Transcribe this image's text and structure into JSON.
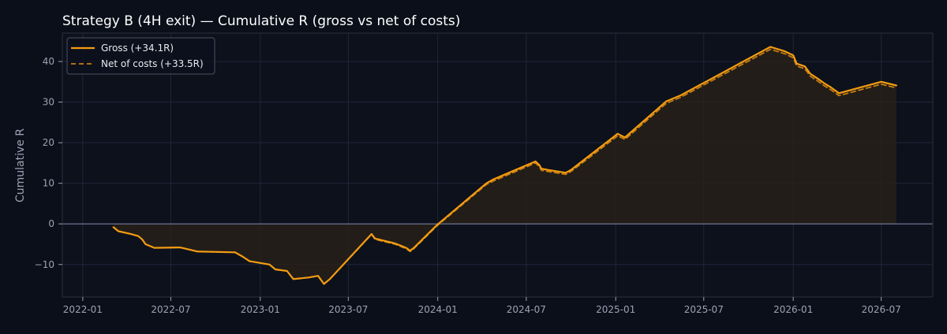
{
  "colors": {
    "background": "#0b0f19",
    "plot_background": "#0d111c",
    "grid": "#20263a",
    "axis_spine": "#2a3040",
    "tick_text": "#9aa3b5",
    "title_text": "#ffffff",
    "gross_line": "#f39c12",
    "net_line": "#c87d0e",
    "fill": "#2a2218",
    "zero_line": "#6b7590"
  },
  "chart_data": {
    "type": "line",
    "title": "Strategy B (4H exit) — Cumulative R (gross vs net of costs)",
    "xlabel": "",
    "ylabel": "Cumulative R",
    "x_axis_type": "date",
    "xlim": [
      "2021-11-20",
      "2026-10-15"
    ],
    "ylim": [
      -18,
      47
    ],
    "x_ticks": [
      "2022-01-01",
      "2022-07-01",
      "2023-01-01",
      "2023-07-01",
      "2024-01-01",
      "2024-07-01",
      "2025-01-01",
      "2025-07-01",
      "2026-01-01",
      "2026-07-01"
    ],
    "x_tick_labels": [
      "2022-01",
      "2022-07",
      "2023-01",
      "2023-07",
      "2024-01",
      "2024-07",
      "2025-01",
      "2025-07",
      "2026-01",
      "2026-07"
    ],
    "y_ticks": [
      -10,
      0,
      10,
      20,
      30,
      40
    ],
    "y_tick_labels": [
      "−10",
      "0",
      "10",
      "20",
      "30",
      "40"
    ],
    "grid": true,
    "legend_position": "top-left",
    "zero_line": true,
    "fill_under": "gross",
    "series": [
      {
        "name": "Gross (+34.1R)",
        "style": "solid",
        "points": [
          [
            "2022-03-05",
            -0.8
          ],
          [
            "2022-03-15",
            -1.8
          ],
          [
            "2022-04-10",
            -2.5
          ],
          [
            "2022-04-25",
            -3.0
          ],
          [
            "2022-05-03",
            -3.8
          ],
          [
            "2022-05-10",
            -5.0
          ],
          [
            "2022-05-28",
            -5.9
          ],
          [
            "2022-07-20",
            -5.8
          ],
          [
            "2022-08-25",
            -6.8
          ],
          [
            "2022-11-10",
            -7.0
          ],
          [
            "2022-11-25",
            -8.0
          ],
          [
            "2022-12-10",
            -9.2
          ],
          [
            "2023-01-20",
            -10.0
          ],
          [
            "2023-02-01",
            -11.2
          ],
          [
            "2023-02-25",
            -11.6
          ],
          [
            "2023-03-10",
            -13.6
          ],
          [
            "2023-04-10",
            -13.2
          ],
          [
            "2023-04-30",
            -12.8
          ],
          [
            "2023-05-12",
            -14.8
          ],
          [
            "2023-05-25",
            -13.5
          ],
          [
            "2023-08-10",
            -3.5
          ],
          [
            "2023-08-18",
            -2.5
          ],
          [
            "2023-08-25",
            -3.6
          ],
          [
            "2023-10-05",
            -4.8
          ],
          [
            "2023-10-28",
            -5.9
          ],
          [
            "2023-11-05",
            -6.6
          ],
          [
            "2023-11-12",
            -6.0
          ],
          [
            "2023-12-31",
            -0.2
          ],
          [
            "2024-04-10",
            10.0
          ],
          [
            "2024-04-25",
            11.0
          ],
          [
            "2024-07-20",
            15.4
          ],
          [
            "2024-07-28",
            14.5
          ],
          [
            "2024-08-01",
            13.6
          ],
          [
            "2024-08-15",
            13.3
          ],
          [
            "2024-09-20",
            12.6
          ],
          [
            "2024-10-01",
            13.3
          ],
          [
            "2025-01-05",
            22.2
          ],
          [
            "2025-01-20",
            21.3
          ],
          [
            "2025-04-15",
            30.2
          ],
          [
            "2025-05-15",
            31.7
          ],
          [
            "2025-11-15",
            43.6
          ],
          [
            "2025-12-15",
            42.5
          ],
          [
            "2026-01-01",
            41.5
          ],
          [
            "2026-01-08",
            39.5
          ],
          [
            "2026-01-25",
            38.8
          ],
          [
            "2026-02-05",
            37.0
          ],
          [
            "2026-02-20",
            35.8
          ],
          [
            "2026-03-05",
            34.7
          ],
          [
            "2026-03-20",
            33.6
          ],
          [
            "2026-04-05",
            32.2
          ],
          [
            "2026-07-01",
            35.0
          ],
          [
            "2026-08-01",
            34.1
          ]
        ]
      },
      {
        "name": "Net of costs (+33.5R)",
        "style": "dashed",
        "points": [
          [
            "2022-03-05",
            -0.8
          ],
          [
            "2022-03-15",
            -1.8
          ],
          [
            "2022-04-10",
            -2.5
          ],
          [
            "2022-04-25",
            -3.0
          ],
          [
            "2022-05-03",
            -3.8
          ],
          [
            "2022-05-10",
            -5.0
          ],
          [
            "2022-05-28",
            -5.9
          ],
          [
            "2022-07-20",
            -5.8
          ],
          [
            "2022-08-25",
            -6.8
          ],
          [
            "2022-11-10",
            -7.0
          ],
          [
            "2022-11-25",
            -8.0
          ],
          [
            "2022-12-10",
            -9.2
          ],
          [
            "2023-01-20",
            -10.0
          ],
          [
            "2023-02-01",
            -11.2
          ],
          [
            "2023-02-25",
            -11.6
          ],
          [
            "2023-03-10",
            -13.6
          ],
          [
            "2023-04-10",
            -13.2
          ],
          [
            "2023-04-30",
            -12.8
          ],
          [
            "2023-05-12",
            -14.8
          ],
          [
            "2023-05-25",
            -13.5
          ],
          [
            "2023-08-10",
            -3.6
          ],
          [
            "2023-08-18",
            -2.6
          ],
          [
            "2023-08-25",
            -3.8
          ],
          [
            "2023-10-05",
            -5.0
          ],
          [
            "2023-10-28",
            -6.1
          ],
          [
            "2023-11-05",
            -6.8
          ],
          [
            "2023-11-12",
            -6.2
          ],
          [
            "2023-12-31",
            -0.4
          ],
          [
            "2024-04-10",
            9.7
          ],
          [
            "2024-04-25",
            10.6
          ],
          [
            "2024-07-20",
            15.0
          ],
          [
            "2024-07-28",
            14.1
          ],
          [
            "2024-08-01",
            13.2
          ],
          [
            "2024-08-15",
            12.9
          ],
          [
            "2024-09-20",
            12.2
          ],
          [
            "2024-10-01",
            12.9
          ],
          [
            "2025-01-05",
            21.7
          ],
          [
            "2025-01-20",
            20.8
          ],
          [
            "2025-04-15",
            29.7
          ],
          [
            "2025-05-15",
            31.2
          ],
          [
            "2025-11-15",
            43.0
          ],
          [
            "2025-12-15",
            41.9
          ],
          [
            "2026-01-01",
            40.9
          ],
          [
            "2026-01-08",
            38.9
          ],
          [
            "2026-01-25",
            38.2
          ],
          [
            "2026-02-05",
            36.4
          ],
          [
            "2026-02-20",
            35.2
          ],
          [
            "2026-03-05",
            34.1
          ],
          [
            "2026-03-20",
            33.0
          ],
          [
            "2026-04-05",
            31.6
          ],
          [
            "2026-07-01",
            34.4
          ],
          [
            "2026-08-01",
            33.5
          ]
        ]
      }
    ]
  }
}
